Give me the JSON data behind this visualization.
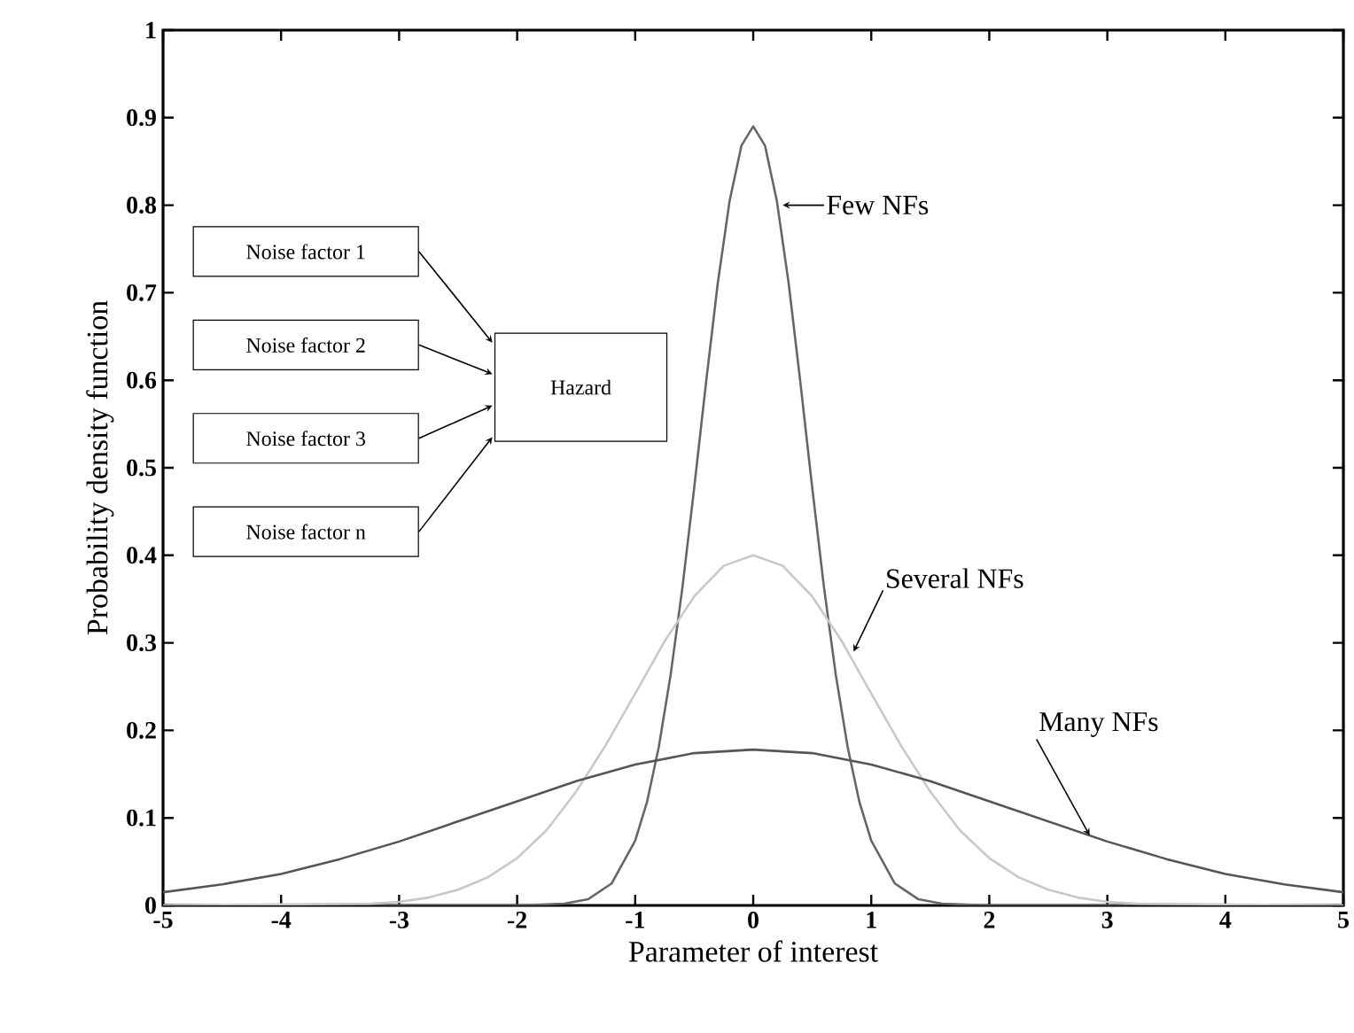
{
  "chart_data": {
    "type": "line",
    "xlabel": "Parameter of interest",
    "ylabel": "Probability density function",
    "xlim": [
      -5,
      5
    ],
    "ylim": [
      0,
      1
    ],
    "xticks": [
      -5,
      -4,
      -3,
      -2,
      -1,
      0,
      1,
      2,
      3,
      4,
      5
    ],
    "yticks": [
      0,
      0.1,
      0.2,
      0.3,
      0.4,
      0.5,
      0.6,
      0.7,
      0.8,
      0.9,
      1
    ],
    "grid": false,
    "marker": "none",
    "line_style": "solid",
    "series": [
      {
        "color": "#666666",
        "x": [
          -5,
          -2,
          -1.6,
          -1.4,
          -1.2,
          -1,
          -0.9,
          -0.8,
          -0.7,
          -0.6,
          -0.5,
          -0.4,
          -0.3,
          -0.2,
          -0.1,
          0,
          0.1,
          0.2,
          0.3,
          0.4,
          0.5,
          0.6,
          0.7,
          0.8,
          0.9,
          1,
          1.2,
          1.4,
          1.6,
          2,
          5
        ],
        "values": [
          0,
          0,
          0.002,
          0.007,
          0.025,
          0.074,
          0.118,
          0.181,
          0.263,
          0.363,
          0.477,
          0.597,
          0.711,
          0.805,
          0.868,
          0.89,
          0.868,
          0.805,
          0.711,
          0.597,
          0.477,
          0.363,
          0.263,
          0.181,
          0.118,
          0.074,
          0.025,
          0.007,
          0.002,
          0,
          0
        ]
      },
      {
        "color": "#c8c8c8",
        "x": [
          -5,
          -3.25,
          -3,
          -2.75,
          -2.5,
          -2.25,
          -2,
          -1.75,
          -1.5,
          -1.25,
          -1,
          -0.75,
          -0.5,
          -0.25,
          0,
          0.25,
          0.5,
          0.75,
          1,
          1.25,
          1.5,
          1.75,
          2,
          2.25,
          2.5,
          2.75,
          3,
          3.25,
          5
        ],
        "values": [
          0,
          0.002,
          0.004,
          0.009,
          0.018,
          0.032,
          0.054,
          0.086,
          0.13,
          0.183,
          0.242,
          0.302,
          0.353,
          0.388,
          0.4,
          0.388,
          0.353,
          0.302,
          0.242,
          0.183,
          0.13,
          0.086,
          0.054,
          0.032,
          0.018,
          0.009,
          0.004,
          0.002,
          0
        ]
      },
      {
        "color": "#555555",
        "x": [
          -5,
          -4.5,
          -4,
          -3.5,
          -3,
          -2.5,
          -2,
          -1.5,
          -1,
          -0.5,
          0,
          0.5,
          1,
          1.5,
          2,
          2.5,
          3,
          3.5,
          4,
          4.5,
          5
        ],
        "values": [
          0.015,
          0.024,
          0.036,
          0.053,
          0.073,
          0.096,
          0.119,
          0.142,
          0.161,
          0.174,
          0.178,
          0.174,
          0.161,
          0.142,
          0.119,
          0.096,
          0.073,
          0.053,
          0.036,
          0.024,
          0.015
        ]
      }
    ],
    "annotations": [
      {
        "text": "Few NFs",
        "x": 0.2,
        "y": 0.8
      },
      {
        "text": "Several NFs",
        "x": 0.8,
        "y": 0.29
      },
      {
        "text": "Many NFs",
        "x": 2.8,
        "y": 0.08
      },
      "Noise factor 1",
      "Noise factor 2",
      "Noise factor 3",
      "Noise factor n",
      "Hazard"
    ]
  }
}
